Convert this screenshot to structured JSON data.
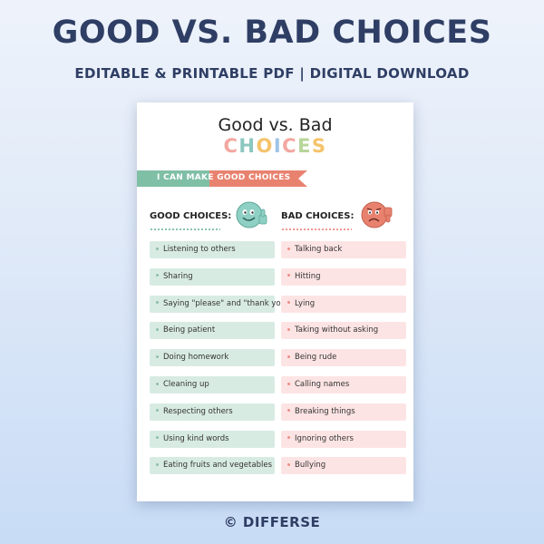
{
  "header": {
    "title": "GOOD VS. BAD CHOICES",
    "subtitle": "EDITABLE & PRINTABLE PDF | DIGITAL DOWNLOAD"
  },
  "sheet": {
    "title": "Good vs. Bad",
    "choices_letters": [
      "C",
      "H",
      "O",
      "I",
      "C",
      "E",
      "S"
    ],
    "choices_colors": [
      "#f2a7a0",
      "#8cc7c0",
      "#f5c36b",
      "#9fc3e6",
      "#f2a7a0",
      "#b7d69a",
      "#f5c36b"
    ],
    "banner": "I CAN MAKE GOOD CHOICES",
    "banner_colors": {
      "left": "#7fbfa6",
      "right": "#e8826f"
    },
    "good_heading": "GOOD CHOICES:",
    "bad_heading": "BAD CHOICES:",
    "good_face_icon": "smiley-thumbs-up-icon",
    "bad_face_icon": "sad-thumbs-down-icon",
    "good": [
      "Listening to others",
      "Sharing",
      "Saying \"please\" and \"thank you\"",
      "Being patient",
      "Doing homework",
      "Cleaning up",
      "Respecting others",
      "Using kind words",
      "Eating fruits and vegetables"
    ],
    "bad": [
      "Talking back",
      "Hitting",
      "Lying",
      "Taking without asking",
      "Being rude",
      "Calling names",
      "Breaking things",
      "Ignoring others",
      "Bullying"
    ]
  },
  "footer": {
    "text": "© DIFFERSE"
  },
  "colors": {
    "navy": "#2f3e64",
    "good_fill": "#d8ebe3",
    "bad_fill": "#fde4e4"
  }
}
